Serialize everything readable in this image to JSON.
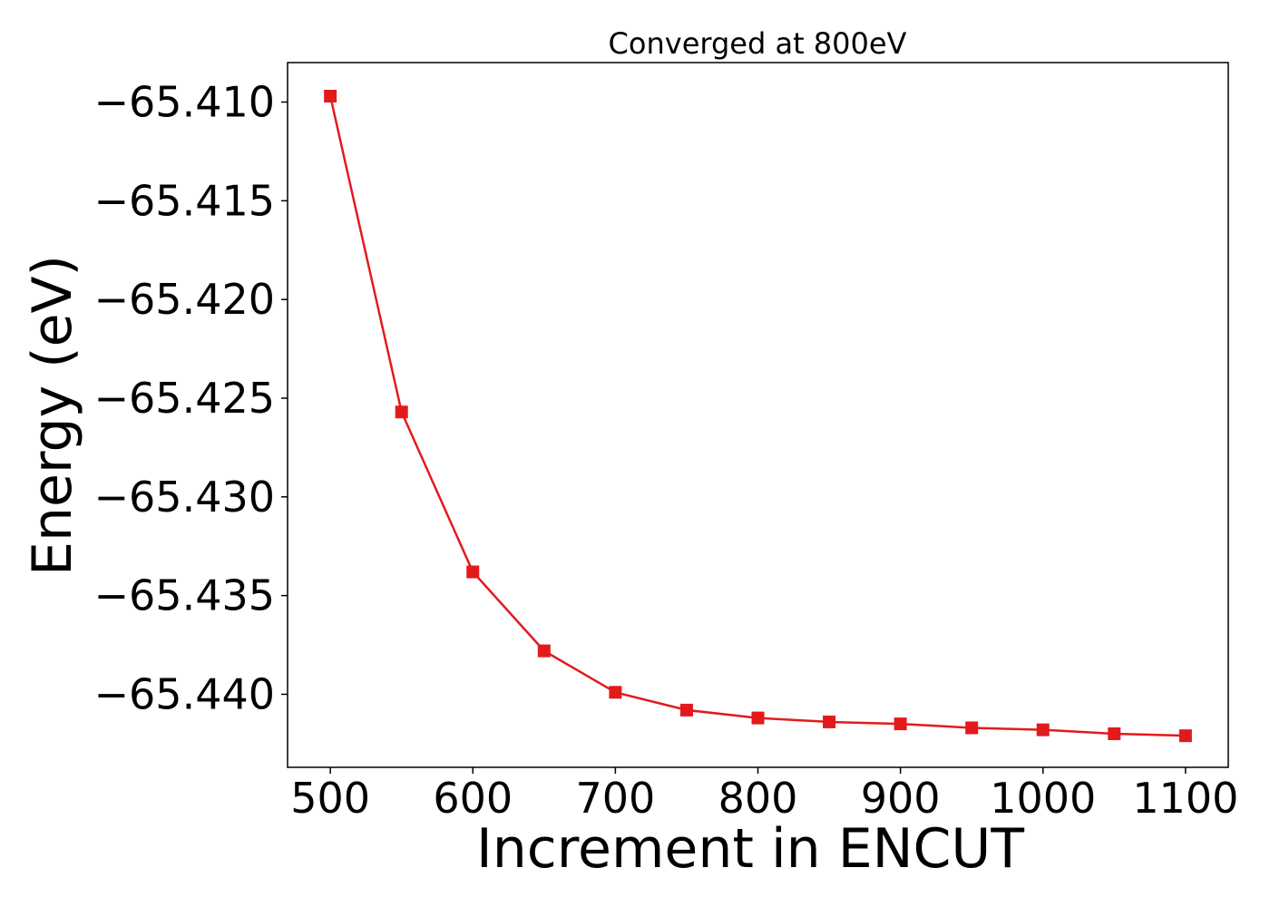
{
  "chart_data": {
    "type": "line",
    "title": "Converged at 800eV",
    "xlabel": "Increment in ENCUT",
    "ylabel": "Energy (eV)",
    "xlim": [
      470,
      1130
    ],
    "ylim": [
      -65.4437,
      -65.408
    ],
    "x_ticks": [
      500,
      600,
      700,
      800,
      900,
      1000,
      1100
    ],
    "x_tick_labels": [
      "500",
      "600",
      "700",
      "800",
      "900",
      "1000",
      "1100"
    ],
    "y_ticks": [
      -65.41,
      -65.415,
      -65.42,
      -65.425,
      -65.43,
      -65.435,
      -65.44
    ],
    "y_tick_labels": [
      "−65.410",
      "−65.415",
      "−65.420",
      "−65.425",
      "−65.430",
      "−65.435",
      "−65.440"
    ],
    "grid": false,
    "series": [
      {
        "color": "#e31a1c",
        "marker": "square",
        "x": [
          500,
          550,
          600,
          650,
          700,
          750,
          800,
          850,
          900,
          950,
          1000,
          1050,
          1100
        ],
        "y": [
          -65.4097,
          -65.4257,
          -65.4338,
          -65.4378,
          -65.4399,
          -65.4408,
          -65.4412,
          -65.4414,
          -65.4415,
          -65.4417,
          -65.4418,
          -65.442,
          -65.4421
        ]
      }
    ]
  }
}
